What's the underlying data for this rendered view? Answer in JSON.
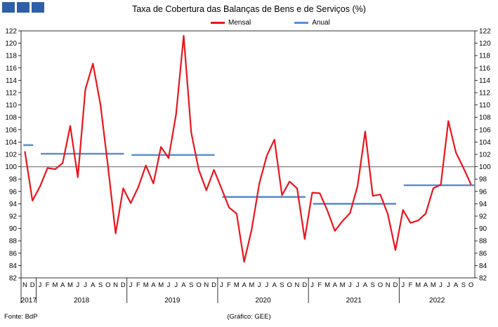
{
  "header": {
    "title": "Taxa de Cobertura das Balanças de Bens e de Serviços (%)",
    "logo": "gee-logo-blocks"
  },
  "footer": {
    "source": "Fonte: BdP",
    "credit": "(Gráfico: GEE)"
  },
  "colors": {
    "mensal": "#e8161e",
    "anual": "#5b8fcf",
    "reference_line": "#808080",
    "logo": "#2e5fa8"
  },
  "chart_data": {
    "type": "line",
    "title": "Taxa de Cobertura das Balanças de Bens e de Serviços (%)",
    "ylim": [
      82,
      122
    ],
    "yticks": [
      82,
      84,
      86,
      88,
      90,
      92,
      94,
      96,
      98,
      100,
      102,
      104,
      106,
      108,
      110,
      112,
      114,
      116,
      118,
      120,
      122
    ],
    "y_axis_both_sides": true,
    "reference_line": 100,
    "legend": {
      "placement": "top-center",
      "entries": [
        "Mensal",
        "Anual"
      ]
    },
    "month_labels": [
      "N",
      "D",
      "J",
      "F",
      "M",
      "A",
      "M",
      "J",
      "J",
      "A",
      "S",
      "O",
      "N",
      "D",
      "J",
      "F",
      "M",
      "A",
      "M",
      "J",
      "J",
      "A",
      "S",
      "O",
      "N",
      "D",
      "J",
      "F",
      "M",
      "A",
      "M",
      "J",
      "J",
      "A",
      "S",
      "O",
      "N",
      "D",
      "J",
      "F",
      "M",
      "A",
      "M",
      "J",
      "J",
      "A",
      "S",
      "O",
      "N",
      "D",
      "J",
      "F",
      "M",
      "A",
      "M",
      "J",
      "J",
      "A",
      "S",
      "O"
    ],
    "year_groups": [
      {
        "label": "2017",
        "months": 2
      },
      {
        "label": "2018",
        "months": 12
      },
      {
        "label": "2019",
        "months": 12
      },
      {
        "label": "2020",
        "months": 12
      },
      {
        "label": "2021",
        "months": 12
      },
      {
        "label": "2022",
        "months": 10
      }
    ],
    "series": [
      {
        "name": "Mensal",
        "values": [
          102.5,
          94.5,
          96.8,
          99.8,
          99.6,
          100.6,
          106.6,
          98.3,
          112.5,
          116.7,
          110.0,
          100.0,
          89.2,
          96.5,
          94.1,
          96.7,
          100.2,
          97.3,
          103.2,
          101.4,
          108.5,
          121.2,
          105.5,
          99.5,
          96.2,
          99.5,
          96.5,
          93.4,
          92.4,
          84.6,
          89.9,
          97.3,
          101.8,
          104.4,
          95.4,
          97.6,
          96.5,
          88.3,
          95.8,
          95.7,
          92.9,
          89.6,
          91.2,
          92.5,
          96.9,
          105.7,
          95.3,
          95.5,
          92.3,
          86.5,
          93.0,
          90.9,
          91.3,
          92.4,
          96.5,
          97.1,
          107.4,
          102.3,
          99.8,
          97.1
        ]
      },
      {
        "name": "Anual",
        "segments": [
          {
            "year": "2017",
            "value": 103.5
          },
          {
            "year": "2018",
            "value": 102.1
          },
          {
            "year": "2019",
            "value": 101.9
          },
          {
            "year": "2020",
            "value": 95.1
          },
          {
            "year": "2021",
            "value": 94.0
          },
          {
            "year": "2022",
            "value": 97.0
          }
        ]
      }
    ]
  }
}
